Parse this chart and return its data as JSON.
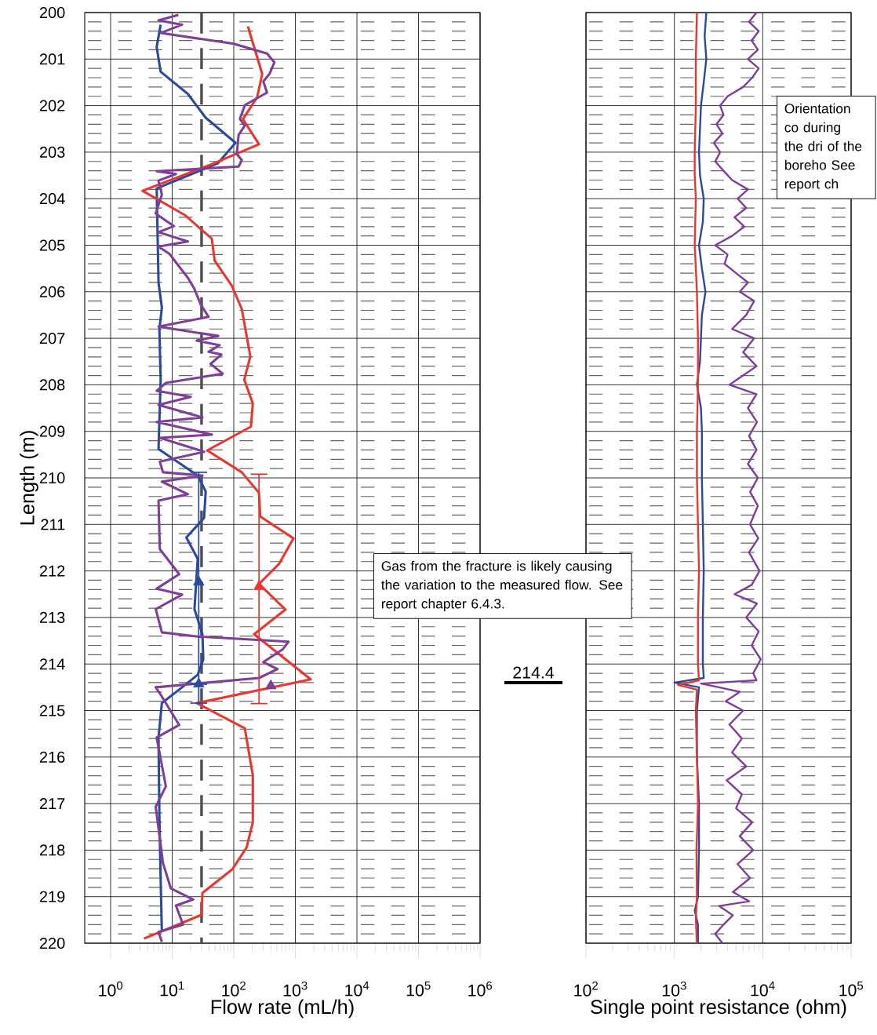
{
  "chart_data": [
    {
      "type": "line",
      "xlabel": "Flow rate (mL/h)",
      "ylabel": "Length (m)",
      "log": "x",
      "grid": true,
      "xlim": [
        0.38,
        1000000
      ],
      "ylim": [
        220,
        200
      ],
      "xticks": [
        {
          "value": 1,
          "label": "10$^{0}$"
        },
        {
          "value": 10,
          "label": "10$^{1}$"
        },
        {
          "value": 100,
          "label": "10$^{2}$"
        },
        {
          "value": 1000,
          "label": "10$^{3}$"
        },
        {
          "value": 10000,
          "label": "10$^{4}$"
        },
        {
          "value": 100000,
          "label": "10$^{5}$"
        },
        {
          "value": 1000000,
          "label": "10$^{6}$"
        }
      ],
      "yticks": [
        200,
        201,
        202,
        203,
        204,
        205,
        206,
        207,
        208,
        209,
        210,
        211,
        212,
        213,
        214,
        215,
        216,
        217,
        218,
        219,
        220
      ],
      "ref_lines": [
        {
          "axis": "x",
          "value": 30,
          "color": "#505050",
          "line_style": "dashed"
        }
      ],
      "annotations": [
        "Gas from the fracture is likely causing the variation to the measured flow. See report chapter 6.4.3.",
        "214.4"
      ],
      "series": [
        {
          "color": "#2a4aa0",
          "x": [
            6.5,
            5.6,
            6.5,
            18,
            35,
            107,
            55,
            5.6,
            6.0,
            6.8,
            6.2,
            6.5,
            6.0,
            26,
            35,
            33,
            17,
            26,
            23,
            31,
            32,
            26,
            14.5,
            6.8,
            6.0,
            6.2,
            6.5,
            6.8
          ],
          "values": [
            200.26,
            200.74,
            201.27,
            201.75,
            202.26,
            202.8,
            203.24,
            203.78,
            205.8,
            206.34,
            206.81,
            207.89,
            209.38,
            209.95,
            210.29,
            210.86,
            211.28,
            211.74,
            212.82,
            213.36,
            213.9,
            214.23,
            214.5,
            214.84,
            215.58,
            217.27,
            218.62,
            219.76
          ]
        },
        {
          "color": "#e8372f",
          "x": [
            170,
            290,
            240,
            141,
            257,
            42,
            3.3,
            16,
            44,
            49,
            93,
            135,
            186,
            148,
            204,
            190,
            37,
            135,
            257,
            269,
            933,
            550,
            257,
            692,
            214,
            1778,
            25,
            151,
            204,
            204,
            162,
            95,
            31,
            30,
            3.5
          ],
          "values": [
            200.3,
            201.32,
            201.82,
            202.29,
            202.83,
            203.27,
            203.83,
            204.35,
            204.86,
            205.33,
            205.87,
            206.37,
            207.39,
            207.89,
            208.4,
            208.9,
            209.41,
            209.88,
            210.32,
            210.83,
            211.3,
            211.84,
            212.28,
            212.83,
            213.36,
            214.33,
            214.84,
            215.38,
            216.39,
            217.4,
            217.94,
            218.41,
            218.92,
            219.39,
            219.9
          ]
        },
        {
          "color": "#7d3f98",
          "x": [
            12.6,
            6.0,
            14.5,
            6.5,
            100,
            347,
            457,
            380,
            302,
            347,
            151,
            126,
            151,
            120,
            112,
            135,
            120,
            5.6,
            11.5,
            6.0,
            6.8,
            5.4,
            10.7,
            6.0,
            18,
            6.0,
            9.1,
            12,
            18,
            23,
            29,
            39,
            6.0,
            56,
            25,
            59,
            39,
            63,
            42,
            66,
            7.9,
            5.6,
            20,
            6.0,
            31,
            5.6,
            44,
            6.3,
            33,
            6.3,
            7.1,
            31,
            6.8,
            18,
            6.0,
            6.3,
            13,
            5.6,
            14.5,
            5.4,
            6.8,
            26,
            776,
            617,
            302,
            513,
            257,
            5.4,
            6.8,
            13,
            5.6,
            7.9,
            5.4,
            7.1,
            9.5,
            22,
            11.5,
            15,
            6.0,
            6.8
          ],
          "values": [
            200.05,
            200.17,
            200.26,
            200.44,
            200.67,
            200.88,
            201.07,
            201.32,
            201.48,
            201.72,
            201.99,
            202.29,
            202.43,
            202.63,
            203.04,
            203.17,
            203.31,
            203.41,
            203.47,
            203.61,
            203.91,
            204.32,
            204.59,
            204.72,
            204.92,
            205.03,
            205.19,
            205.4,
            205.7,
            205.94,
            206.27,
            206.54,
            206.75,
            206.95,
            207.05,
            207.15,
            207.29,
            207.35,
            207.55,
            207.76,
            207.96,
            208.13,
            208.26,
            208.43,
            208.7,
            208.8,
            209.07,
            209.14,
            209.44,
            209.65,
            209.88,
            209.95,
            210.08,
            210.35,
            210.49,
            211.53,
            212.07,
            212.38,
            212.51,
            212.82,
            213.32,
            213.41,
            213.52,
            213.69,
            213.96,
            214.11,
            214.3,
            214.5,
            214.7,
            215.31,
            215.58,
            216.63,
            217.07,
            218.28,
            218.82,
            219.06,
            219.19,
            219.6,
            219.76,
            219.97
          ]
        },
        {
          "type": "scatter",
          "marker": "triangle",
          "color": "#2a4aa0",
          "x": [
            27,
            27
          ],
          "values": [
            212.24,
            214.43
          ],
          "errors": [
            [
              209.88,
              214.84
            ],
            null
          ]
        },
        {
          "type": "scatter",
          "marker": "triangle",
          "color": "#e8372f",
          "x": [
            257
          ],
          "values": [
            212.34
          ],
          "errors": [
            [
              209.92,
              214.85
            ]
          ]
        },
        {
          "type": "scatter",
          "marker": "triangle",
          "color": "#7d3f98",
          "x": [
            400
          ],
          "values": [
            214.47
          ]
        }
      ]
    },
    {
      "type": "line",
      "xlabel": "Single point resistance (ohm)",
      "log": "x",
      "grid": true,
      "tick_labels": "x",
      "xlim": [
        100,
        100000
      ],
      "ylim": [
        220,
        200
      ],
      "xticks": [
        {
          "value": 100,
          "label": "10$^{2}$"
        },
        {
          "value": 1000,
          "label": "10$^{3}$"
        },
        {
          "value": 10000,
          "label": "10$^{4}$"
        },
        {
          "value": 100000,
          "label": "10$^{5}$"
        }
      ],
      "yticks": [
        200,
        201,
        202,
        203,
        204,
        205,
        206,
        207,
        208,
        209,
        210,
        211,
        212,
        213,
        214,
        215,
        216,
        217,
        218,
        219,
        220
      ],
      "annotations": [
        "Orientation co during the dri of the boreho See report ch"
      ],
      "series": [
        {
          "color": "#7d3f98",
          "x": [
            8500,
            7000,
            9000,
            7500,
            8800,
            6800,
            9000,
            7600,
            6000,
            4000,
            3300,
            3600,
            3000,
            3500,
            2800,
            3300,
            2900,
            3600,
            4500,
            6800,
            5200,
            6500,
            4800,
            6200,
            4500,
            2900,
            4000,
            3700,
            5000,
            6800,
            5500,
            8000,
            6500,
            4500,
            8000,
            6000,
            8500,
            5000,
            4200,
            8500,
            6800,
            8600,
            7000,
            8500,
            6800,
            8800,
            7200,
            8800,
            7200,
            8900,
            7000,
            9200,
            7500,
            4800,
            8600,
            6500,
            9000,
            7500,
            9500,
            7800,
            8500,
            2000,
            3200,
            5500,
            3800,
            6000,
            4200,
            5800,
            4500,
            6500,
            3900,
            5800,
            5000,
            7600,
            5500,
            7800,
            5200,
            7200,
            4600,
            7000,
            3200,
            4600,
            3600,
            2900,
            3500
          ],
          "values": [
            200.0,
            200.2,
            200.4,
            200.6,
            200.8,
            201.0,
            201.2,
            201.4,
            201.6,
            201.8,
            202.0,
            202.2,
            202.4,
            202.6,
            202.8,
            203.0,
            203.2,
            203.4,
            203.6,
            203.8,
            204.0,
            204.2,
            204.4,
            204.6,
            204.8,
            205.0,
            205.2,
            205.4,
            205.6,
            205.8,
            206.0,
            206.2,
            206.5,
            206.8,
            207.0,
            207.3,
            207.6,
            207.9,
            208.0,
            208.2,
            208.5,
            208.8,
            209.1,
            209.4,
            209.7,
            210.0,
            210.3,
            210.6,
            211.0,
            211.3,
            211.6,
            212.0,
            212.3,
            212.5,
            212.7,
            213.0,
            213.3,
            213.6,
            213.9,
            214.2,
            214.35,
            214.42,
            214.5,
            214.6,
            214.8,
            215.0,
            215.3,
            215.6,
            215.9,
            216.2,
            216.5,
            216.8,
            217.1,
            217.4,
            217.7,
            218.0,
            218.3,
            218.6,
            218.9,
            219.1,
            219.2,
            219.4,
            219.6,
            219.8,
            220.0
          ]
        },
        {
          "color": "#2a4aa0",
          "x": [
            2300,
            2200,
            2300,
            2150,
            2000,
            1950,
            1900,
            1950,
            2150,
            2100,
            1900,
            2050,
            2250,
            2050,
            2000,
            1950,
            1800,
            2000,
            2050,
            2050,
            2100,
            2150,
            2100,
            2100,
            2150,
            1000,
            1900,
            1800,
            1800,
            1900,
            1900,
            1850,
            1700,
            1850,
            1850
          ],
          "values": [
            200.0,
            200.5,
            201.0,
            201.5,
            202.0,
            202.5,
            203.0,
            203.5,
            204.0,
            204.5,
            205.0,
            205.5,
            206.0,
            206.5,
            207.0,
            207.5,
            208.0,
            208.5,
            209.0,
            210.0,
            211.0,
            212.0,
            213.0,
            214.0,
            214.3,
            214.4,
            214.5,
            215.0,
            216.0,
            217.0,
            218.0,
            219.0,
            219.3,
            219.6,
            220.0
          ]
        },
        {
          "color": "#e8372f",
          "x": [
            1800,
            1750,
            1750,
            1700,
            1700,
            1750,
            1700,
            1750,
            1800,
            1850,
            1850,
            1800,
            1800,
            1850,
            1900,
            1850,
            1850,
            1900,
            1100,
            1800,
            1750,
            1800,
            1850,
            1780,
            1800,
            1750,
            1800
          ],
          "values": [
            200.0,
            201.0,
            202.0,
            203.0,
            203.5,
            204.0,
            205.0,
            205.5,
            206.0,
            207.0,
            208.0,
            209.0,
            210.0,
            211.0,
            212.0,
            213.0,
            214.0,
            214.35,
            214.45,
            214.55,
            215.0,
            216.0,
            217.0,
            218.0,
            219.0,
            219.5,
            220.0
          ]
        }
      ]
    }
  ]
}
